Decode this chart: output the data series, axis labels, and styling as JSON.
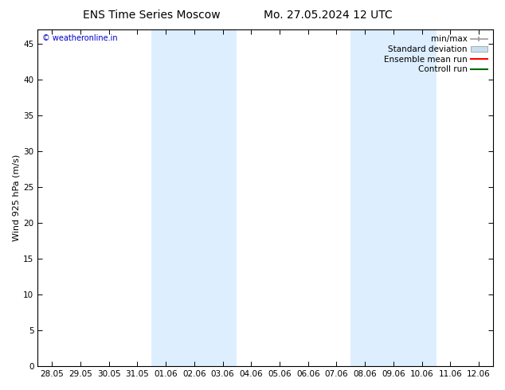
{
  "title_left": "ENS Time Series Moscow",
  "title_right": "Mo. 27.05.2024 12 UTC",
  "ylabel": "Wind 925 hPa (m/s)",
  "watermark": "© weatheronline.in",
  "watermark_color": "#0000cc",
  "bg_color": "#ffffff",
  "plot_bg_color": "#ffffff",
  "shaded_band_color": "#ddeeff",
  "ylim": [
    0,
    47
  ],
  "yticks": [
    0,
    5,
    10,
    15,
    20,
    25,
    30,
    35,
    40,
    45
  ],
  "xtick_labels": [
    "28.05",
    "29.05",
    "30.05",
    "31.05",
    "01.06",
    "02.06",
    "03.06",
    "04.06",
    "05.06",
    "06.06",
    "07.06",
    "08.06",
    "09.06",
    "10.06",
    "11.06",
    "12.06"
  ],
  "shaded_band1_start": "01.06",
  "shaded_band1_end": "03.06",
  "shaded_band2_start": "08.06",
  "shaded_band2_end": "10.06",
  "legend_entries": [
    {
      "label": "min/max",
      "color": "#999999",
      "type": "minmax"
    },
    {
      "label": "Standard deviation",
      "color": "#c8dff0",
      "type": "stddev"
    },
    {
      "label": "Ensemble mean run",
      "color": "#ff0000",
      "type": "line"
    },
    {
      "label": "Controll run",
      "color": "#006600",
      "type": "line"
    }
  ],
  "title_fontsize": 10,
  "axis_label_fontsize": 8,
  "tick_fontsize": 7.5,
  "legend_fontsize": 7.5
}
